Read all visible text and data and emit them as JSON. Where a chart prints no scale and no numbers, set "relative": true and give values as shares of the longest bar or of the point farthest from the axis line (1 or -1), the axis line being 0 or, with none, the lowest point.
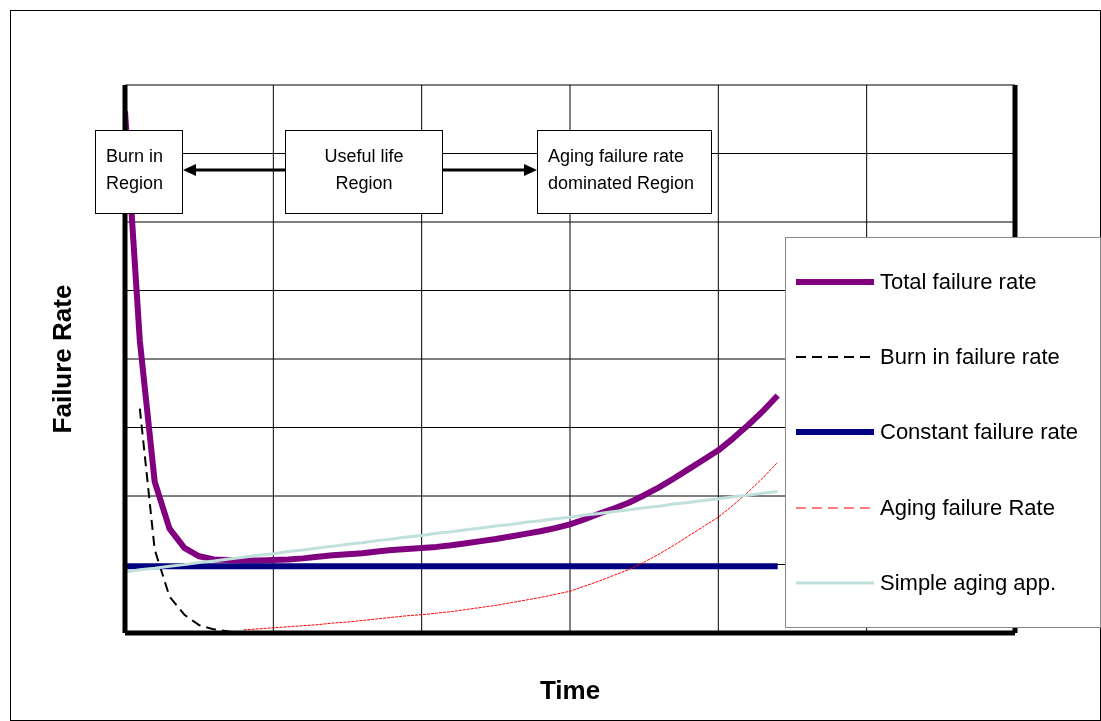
{
  "chart_data": {
    "type": "line",
    "relative": true,
    "xlabel": "Time",
    "ylabel": "Failure Rate",
    "annotations": [
      "Burn in Region",
      "Useful life Region",
      "Aging failure rate dominated Region"
    ],
    "grid": true,
    "legend": "right",
    "marker": "none",
    "line_style": "solid",
    "categories": [
      null,
      null,
      null,
      null,
      null,
      null,
      null,
      null,
      null,
      null,
      null,
      null,
      null,
      null,
      null,
      null,
      null,
      null,
      null,
      null,
      null,
      null,
      null,
      null,
      null,
      null,
      null,
      null,
      null,
      null,
      null,
      null,
      null,
      null,
      null,
      null,
      null,
      null,
      null,
      null,
      null,
      null,
      null,
      null,
      null,
      null,
      null,
      null,
      null,
      null,
      null,
      null,
      null,
      null,
      null,
      null,
      null,
      null,
      null,
      null,
      null
    ],
    "series": [
      {
        "name": "Total failure rate",
        "color": "#800080",
        "values": [
          1.0,
          0.56,
          0.29,
          0.2,
          0.163,
          0.147,
          0.141,
          0.14,
          0.139,
          0.139,
          0.14,
          0.141,
          0.143,
          0.146,
          0.149,
          0.151,
          0.153,
          0.156,
          0.159,
          0.161,
          0.163,
          0.165,
          0.168,
          0.172,
          0.176,
          0.18,
          0.185,
          0.19,
          0.195,
          0.201,
          0.208,
          0.218,
          0.229,
          0.239,
          0.25,
          0.264,
          0.279,
          0.296,
          0.314,
          0.332,
          0.35,
          0.373,
          0.398,
          0.425,
          0.455,
          null,
          null,
          null,
          null,
          null,
          null,
          null,
          null,
          null,
          null,
          null,
          null,
          null,
          null,
          null,
          null
        ]
      },
      {
        "name": "Burn in failure rate",
        "color": "#000000",
        "line_style": "dashed",
        "values": [
          null,
          0.43,
          0.16,
          0.07,
          0.035,
          0.015,
          0.007,
          0.003,
          0,
          0,
          0,
          0,
          0,
          0,
          0,
          0,
          0,
          0,
          0,
          0,
          0,
          0,
          0,
          0,
          0,
          0,
          0,
          0,
          0,
          0,
          0,
          0,
          0,
          0,
          0,
          0,
          0,
          0,
          0,
          0,
          0,
          0,
          0,
          0,
          0,
          null,
          null,
          null,
          null,
          null,
          null,
          null,
          null,
          null,
          null,
          null,
          null,
          null,
          null,
          null,
          null
        ]
      },
      {
        "name": "Constant failure rate",
        "color": "#000080",
        "values": [
          0.128,
          0.128,
          0.128,
          0.128,
          0.128,
          0.128,
          0.128,
          0.128,
          0.128,
          0.128,
          0.128,
          0.128,
          0.128,
          0.128,
          0.128,
          0.128,
          0.128,
          0.128,
          0.128,
          0.128,
          0.128,
          0.128,
          0.128,
          0.128,
          0.128,
          0.128,
          0.128,
          0.128,
          0.128,
          0.128,
          0.128,
          0.128,
          0.128,
          0.128,
          0.128,
          0.128,
          0.128,
          0.128,
          0.128,
          0.128,
          0.128,
          0.128,
          0.128,
          0.128,
          0.128,
          null,
          null,
          null,
          null,
          null,
          null,
          null,
          null,
          null,
          null,
          null,
          null,
          null,
          null,
          null,
          null
        ]
      },
      {
        "name": "Aging failure Rate",
        "color": "#ff0000",
        "line_style": "dashed",
        "values": [
          null,
          null,
          null,
          null,
          null,
          null,
          null,
          null,
          0.006,
          0.008,
          0.01,
          0.012,
          0.014,
          0.016,
          0.019,
          0.021,
          0.024,
          0.027,
          0.03,
          0.033,
          0.035,
          0.038,
          0.041,
          0.045,
          0.049,
          0.053,
          0.058,
          0.063,
          0.068,
          0.074,
          0.08,
          0.09,
          0.1,
          0.111,
          0.122,
          0.136,
          0.151,
          0.168,
          0.186,
          0.204,
          0.222,
          0.245,
          0.27,
          0.297,
          0.327,
          null,
          null,
          null,
          null,
          null,
          null,
          null,
          null,
          null,
          null,
          null,
          null,
          null,
          null,
          null,
          null
        ]
      },
      {
        "name": "Simple aging app.",
        "color": "#c0e0dc",
        "values": [
          0.117,
          0.121,
          0.124,
          0.128,
          0.131,
          0.135,
          0.138,
          0.142,
          0.145,
          0.149,
          0.152,
          0.156,
          0.159,
          0.163,
          0.166,
          0.17,
          0.173,
          0.177,
          0.18,
          0.184,
          0.187,
          0.191,
          0.194,
          0.198,
          0.201,
          0.205,
          0.208,
          0.212,
          0.215,
          0.219,
          0.222,
          0.226,
          0.229,
          0.233,
          0.236,
          0.24,
          0.243,
          0.247,
          0.25,
          0.254,
          0.257,
          0.261,
          0.264,
          0.268,
          0.271,
          null,
          null,
          null,
          null,
          null,
          null,
          null,
          null,
          null,
          null,
          null,
          null,
          null,
          null,
          null,
          null
        ]
      }
    ]
  }
}
